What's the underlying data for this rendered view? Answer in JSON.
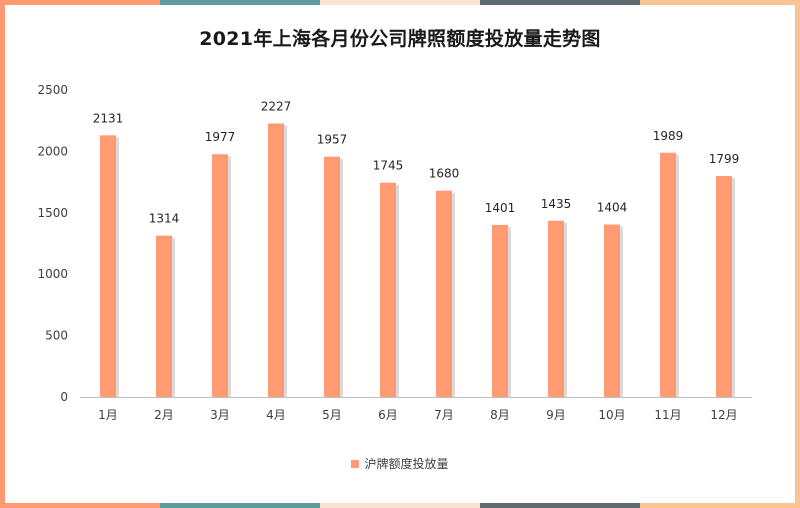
{
  "chart_data": {
    "type": "bar",
    "title": "2021年上海各月份公司牌照额度投放量走势图",
    "categories": [
      "1月",
      "2月",
      "3月",
      "4月",
      "5月",
      "6月",
      "7月",
      "8月",
      "9月",
      "10月",
      "11月",
      "12月"
    ],
    "series": [
      {
        "name": "沪牌额度投放量",
        "values": [
          2131,
          1314,
          1977,
          2227,
          1957,
          1745,
          1680,
          1401,
          1435,
          1404,
          1989,
          1799
        ],
        "color": "#FF9A72"
      }
    ],
    "ylim": [
      0,
      2500
    ],
    "yticks": [
      "0",
      "500",
      "1000",
      "1500",
      "2000",
      "2500"
    ],
    "grid": false,
    "legend_position": "bottom",
    "data_labels": true
  },
  "decor": {
    "stripe_colors": [
      "#FF9A72",
      "#5E9A9E",
      "#FCE0D0",
      "#5C6B6B",
      "#F9C494"
    ],
    "axis_color": "#BFBFBF",
    "bar_shadow_color": "#BFBFBF"
  }
}
